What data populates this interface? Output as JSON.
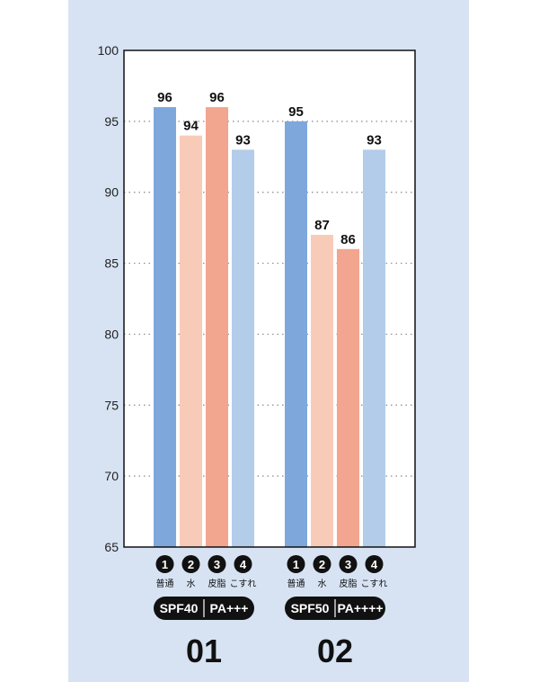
{
  "chart_data": {
    "type": "bar",
    "ylim": [
      65,
      100
    ],
    "yticks": [
      65,
      70,
      75,
      80,
      85,
      90,
      95,
      100
    ],
    "grid": "horizontal-dotted",
    "groups": [
      {
        "name": "01",
        "badge_left": "SPF40",
        "badge_right": "PA+++",
        "bars": [
          {
            "num": "1",
            "label": "普通",
            "value": 96,
            "color": "#7ea7dc"
          },
          {
            "num": "2",
            "label": "水",
            "value": 94,
            "color": "#f8cbb8"
          },
          {
            "num": "3",
            "label": "皮脂",
            "value": 96,
            "color": "#f2a58f"
          },
          {
            "num": "4",
            "label": "こすれ",
            "value": 93,
            "color": "#b3cce9"
          }
        ]
      },
      {
        "name": "02",
        "badge_left": "SPF50",
        "badge_right": "PA++++",
        "bars": [
          {
            "num": "1",
            "label": "普通",
            "value": 95,
            "color": "#7ea7dc"
          },
          {
            "num": "2",
            "label": "水",
            "value": 87,
            "color": "#f8cbb8"
          },
          {
            "num": "3",
            "label": "皮脂",
            "value": 86,
            "color": "#f2a58f"
          },
          {
            "num": "4",
            "label": "こすれ",
            "value": 93,
            "color": "#b3cce9"
          }
        ]
      }
    ]
  }
}
